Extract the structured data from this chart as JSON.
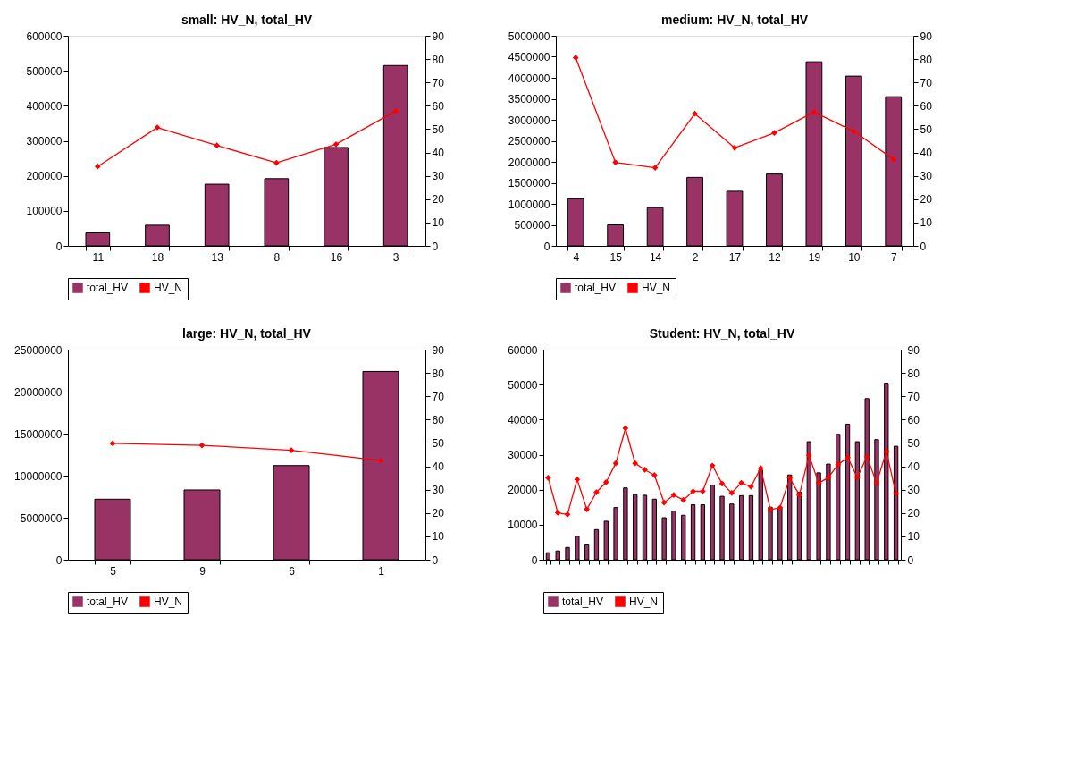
{
  "chart_data": [
    {
      "type": "bar",
      "title": "small: HV_N, total_HV",
      "categories": [
        "11",
        "18",
        "13",
        "8",
        "16",
        "3"
      ],
      "series": [
        {
          "name": "total_HV",
          "color": "#993366",
          "values": [
            37000,
            59000,
            176000,
            192000,
            281000,
            515000
          ]
        },
        {
          "name": "HV_N",
          "type": "line",
          "axis": "y2",
          "color": "#ff0000",
          "marker": "diamond",
          "values": [
            34.0,
            50.7,
            43.0,
            35.6,
            43.5,
            57.7
          ]
        }
      ],
      "ylim": [
        0,
        600000
      ],
      "yticks": [
        0,
        100000,
        200000,
        300000,
        400000,
        500000,
        600000
      ],
      "y2lim": [
        0,
        90
      ],
      "y2ticks": [
        0,
        10,
        20,
        30,
        40,
        50,
        60,
        70,
        80,
        90
      ],
      "legend": "bottom",
      "grid": false
    },
    {
      "type": "bar",
      "title": "medium: HV_N, total_HV",
      "categories": [
        "4",
        "15",
        "14",
        "2",
        "17",
        "12",
        "19",
        "10",
        "7"
      ],
      "series": [
        {
          "name": "total_HV",
          "color": "#993366",
          "values": [
            1120000,
            500000,
            910000,
            1630000,
            1300000,
            1710000,
            4380000,
            4040000,
            3550000
          ]
        },
        {
          "name": "HV_N",
          "type": "line",
          "axis": "y2",
          "color": "#ff0000",
          "marker": "diamond",
          "values": [
            80.6,
            35.8,
            33.5,
            56.6,
            42.0,
            48.4,
            57.3,
            49.1,
            37.1
          ]
        }
      ],
      "ylim": [
        0,
        5000000
      ],
      "yticks": [
        0,
        500000,
        1000000,
        1500000,
        2000000,
        2500000,
        3000000,
        3500000,
        4000000,
        4500000,
        5000000
      ],
      "y2lim": [
        0,
        90
      ],
      "y2ticks": [
        0,
        10,
        20,
        30,
        40,
        50,
        60,
        70,
        80,
        90
      ],
      "legend": "bottom",
      "grid": false
    },
    {
      "type": "bar",
      "title": "large: HV_N, total_HV",
      "categories": [
        "5",
        "9",
        "6",
        "1"
      ],
      "series": [
        {
          "name": "total_HV",
          "color": "#993366",
          "values": [
            7200000,
            8300000,
            11200000,
            22400000
          ]
        },
        {
          "name": "HV_N",
          "type": "line",
          "axis": "y2",
          "color": "#ff0000",
          "marker": "diamond",
          "values": [
            49.8,
            49.0,
            46.9,
            42.5
          ]
        }
      ],
      "ylim": [
        0,
        25000000
      ],
      "yticks": [
        0,
        5000000,
        10000000,
        15000000,
        20000000,
        25000000
      ],
      "y2lim": [
        0,
        90
      ],
      "y2ticks": [
        0,
        10,
        20,
        30,
        40,
        50,
        60,
        70,
        80,
        90
      ],
      "legend": "bottom",
      "grid": false
    },
    {
      "type": "bar",
      "title": "Student: HV_N, total_HV",
      "categories": [
        null,
        null,
        null,
        null,
        null,
        null,
        null,
        null,
        null,
        null,
        null,
        null,
        null,
        null,
        null,
        null,
        null,
        null,
        null,
        null,
        null,
        null,
        null,
        null,
        null,
        null,
        null,
        null,
        null,
        null,
        null,
        null,
        null,
        null,
        null,
        null,
        null
      ],
      "series": [
        {
          "name": "total_HV",
          "color": "#993366",
          "values": [
            2000,
            2500,
            3500,
            6700,
            4200,
            8600,
            11000,
            14900,
            20500,
            18600,
            18400,
            17300,
            12000,
            13900,
            12700,
            15700,
            15700,
            21300,
            18100,
            15900,
            18300,
            18300,
            25600,
            15000,
            14900,
            24200,
            19300,
            33700,
            24800,
            27300,
            35800,
            38700,
            33700,
            46000,
            34300,
            50400,
            32400
          ]
        },
        {
          "name": "HV_N",
          "type": "line",
          "axis": "y2",
          "color": "#ff0000",
          "marker": "diamond",
          "values": [
            35.1,
            20.1,
            19.4,
            34.4,
            21.6,
            28.9,
            33.2,
            41.3,
            56.3,
            41.3,
            38.5,
            36.2,
            24.5,
            27.7,
            25.6,
            29.3,
            29.3,
            40.3,
            32.6,
            28.6,
            32.9,
            31.3,
            39.2,
            21.5,
            22.3,
            35.0,
            27.7,
            44.7,
            32.8,
            35.2,
            40.7,
            43.8,
            35.2,
            44.1,
            32.8,
            46.4,
            28.3
          ]
        }
      ],
      "ylim": [
        0,
        60000
      ],
      "yticks": [
        0,
        10000,
        20000,
        30000,
        40000,
        50000,
        60000
      ],
      "y2lim": [
        0,
        90
      ],
      "y2ticks": [
        0,
        10,
        20,
        30,
        40,
        50,
        60,
        70,
        80,
        90
      ],
      "legend": "bottom",
      "grid": false
    }
  ]
}
